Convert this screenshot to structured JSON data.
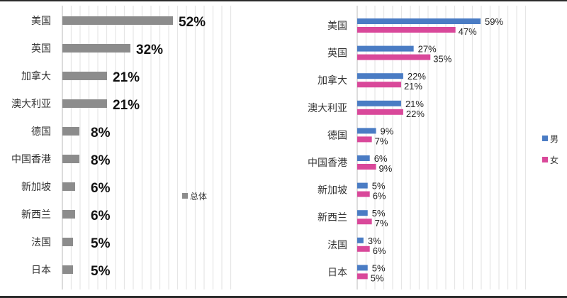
{
  "chart_data": [
    {
      "type": "bar",
      "orientation": "horizontal",
      "categories": [
        "美国",
        "英国",
        "加拿大",
        "澳大利亚",
        "德国",
        "中国香港",
        "新加坡",
        "新西兰",
        "法国",
        "日本"
      ],
      "series": [
        {
          "name": "总体",
          "values": [
            52,
            32,
            21,
            21,
            8,
            8,
            6,
            6,
            5,
            5
          ],
          "color": "#8c8c8c"
        }
      ],
      "data_labels": [
        "52%",
        "32%",
        "21%",
        "21%",
        "8%",
        "8%",
        "6%",
        "6%",
        "5%",
        "5%"
      ],
      "xlim": [
        0,
        80
      ],
      "grid": true,
      "legend_position": "right"
    },
    {
      "type": "bar",
      "orientation": "horizontal",
      "categories": [
        "美国",
        "英国",
        "加拿大",
        "澳大利亚",
        "德国",
        "中国香港",
        "新加坡",
        "新西兰",
        "法国",
        "日本"
      ],
      "series": [
        {
          "name": "男",
          "values": [
            59,
            27,
            22,
            21,
            9,
            6,
            5,
            5,
            3,
            5
          ],
          "color": "#4a7cc4",
          "labels": [
            "59%",
            "27%",
            "22%",
            "21%",
            "9%",
            "6%",
            "5%",
            "5%",
            "3%",
            "5%"
          ]
        },
        {
          "name": "女",
          "values": [
            47,
            35,
            21,
            22,
            7,
            9,
            6,
            7,
            6,
            5
          ],
          "color": "#d9489a",
          "labels": [
            "47%",
            "35%",
            "21%",
            "22%",
            "7%",
            "9%",
            "6%",
            "7%",
            "6%",
            "5%"
          ]
        }
      ],
      "xlim": [
        0,
        80
      ],
      "grid": true,
      "legend_position": "right"
    }
  ]
}
